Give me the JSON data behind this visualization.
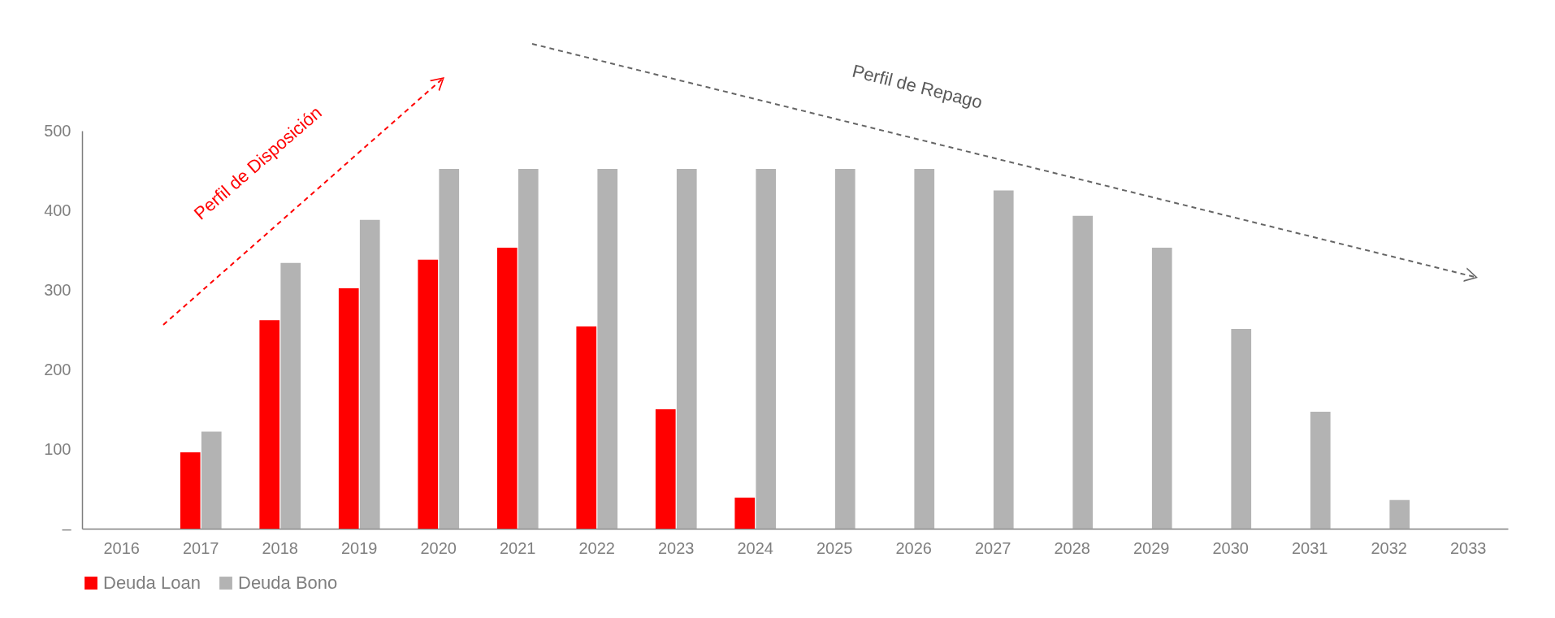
{
  "chart_data": {
    "type": "bar",
    "categories": [
      "2016",
      "2017",
      "2018",
      "2019",
      "2020",
      "2021",
      "2022",
      "2023",
      "2024",
      "2025",
      "2026",
      "2027",
      "2028",
      "2029",
      "2030",
      "2031",
      "2032",
      "2033"
    ],
    "series": [
      {
        "name": "Deuda Loan",
        "color": "#ff0000",
        "values": [
          null,
          96,
          262,
          302,
          338,
          353,
          254,
          150,
          39,
          null,
          null,
          null,
          null,
          null,
          null,
          null,
          null,
          null
        ]
      },
      {
        "name": "Deuda Bono",
        "color": "#b3b3b3",
        "values": [
          null,
          122,
          334,
          388,
          452,
          452,
          452,
          452,
          452,
          452,
          452,
          425,
          393,
          353,
          251,
          147,
          36,
          null
        ]
      }
    ],
    "ylim": [
      0,
      500
    ],
    "yticks": [
      {
        "value": 0,
        "label": "–"
      },
      100,
      200,
      300,
      400,
      500
    ],
    "grid": false,
    "legend": "bottom",
    "annotations": [
      "Perfil de Disposición",
      "Perfil de Repago"
    ]
  }
}
